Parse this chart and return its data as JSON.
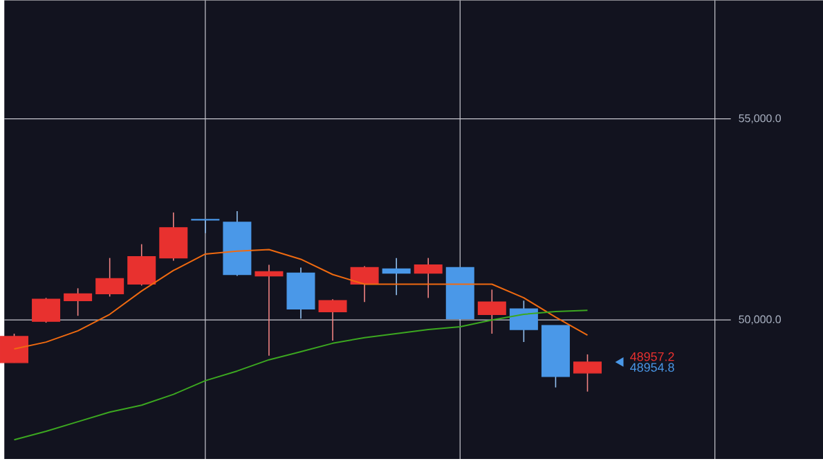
{
  "chart_data": {
    "type": "candlestick",
    "categories": [
      null,
      null,
      null,
      null,
      null,
      null,
      null,
      null,
      null,
      null,
      null,
      null,
      null,
      null,
      null,
      null,
      null,
      null,
      null
    ],
    "ohlc": [
      [
        48938,
        49658,
        48938,
        49589
      ],
      [
        49966,
        50548,
        49932,
        50514
      ],
      [
        50480,
        50788,
        50103,
        50651
      ],
      [
        50651,
        51541,
        50582,
        51028
      ],
      [
        50891,
        51884,
        50856,
        51576
      ],
      [
        51541,
        52672,
        51473,
        52295
      ],
      [
        52500,
        52500,
        52158,
        52483
      ],
      [
        52432,
        52706,
        51096,
        51130
      ],
      [
        51096,
        51370,
        49110,
        51199
      ],
      [
        51165,
        51302,
        50034,
        50274
      ],
      [
        50206,
        50514,
        49486,
        50480
      ],
      [
        50891,
        51336,
        50445,
        51302
      ],
      [
        51267,
        51541,
        50617,
        51165
      ],
      [
        51165,
        51541,
        50548,
        51370
      ],
      [
        51302,
        51302,
        49990,
        50034
      ],
      [
        50137,
        50754,
        49658,
        50445
      ],
      [
        50274,
        50480,
        49452,
        49760
      ],
      [
        49863,
        49863,
        48322,
        48596
      ],
      [
        48680,
        49144,
        48219,
        48954.8
      ]
    ],
    "colors": [
      "#e8312f",
      "#e8312f",
      "#e8312f",
      "#e8312f",
      "#e8312f",
      "#e8312f",
      "#4a98e8",
      "#4a98e8",
      "#e8312f",
      "#4a98e8",
      "#e8312f",
      "#e8312f",
      "#4a98e8",
      "#e8312f",
      "#4a98e8",
      "#e8312f",
      "#4a98e8",
      "#4a98e8",
      "#e8312f"
    ],
    "series": [
      {
        "type": "line",
        "color": "#f06a10",
        "values": [
          49280,
          49450,
          49730,
          50140,
          50720,
          51230,
          51640,
          51710,
          51750,
          51510,
          51130,
          50890,
          50890,
          50890,
          50890,
          50890,
          50550,
          50070,
          49620
        ]
      },
      {
        "type": "line",
        "color": "#3ca820",
        "values": [
          47020,
          47230,
          47470,
          47710,
          47880,
          48150,
          48490,
          48730,
          49010,
          49210,
          49420,
          49560,
          49660,
          49760,
          49830,
          50000,
          50140,
          50210,
          50240
        ]
      }
    ],
    "ylim": [
      46541,
      57946
    ],
    "yticks": [
      {
        "value": 50000,
        "label": "50,000.0"
      },
      {
        "value": 55000,
        "label": "55,000.0"
      }
    ],
    "grid": true,
    "tick_labels": "y",
    "annotations": [
      "48957.2",
      "48954.8"
    ]
  }
}
